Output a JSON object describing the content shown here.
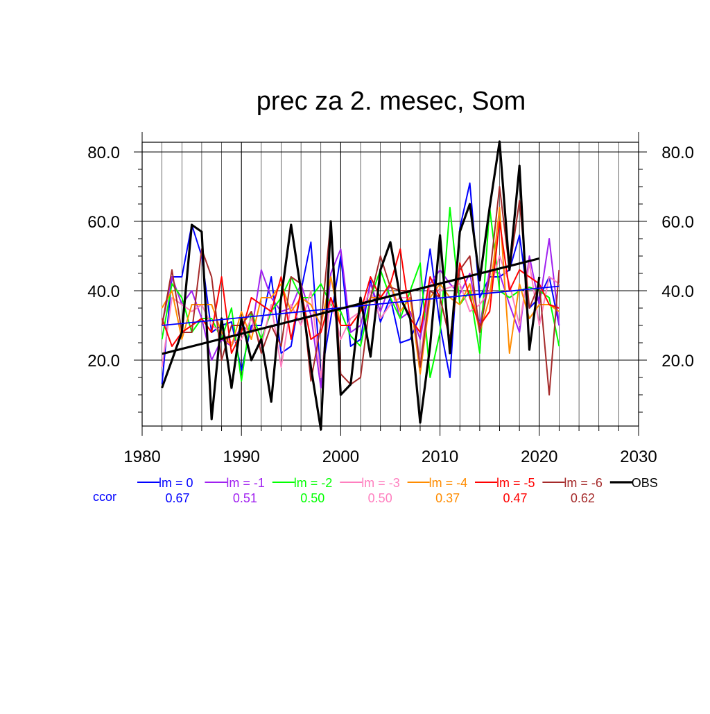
{
  "chart_data": {
    "type": "line",
    "title": "prec za 2. mesec, Som",
    "xlim": [
      1980,
      2030
    ],
    "ylim": [
      0,
      85
    ],
    "xticks": [
      1980,
      1990,
      2000,
      2010,
      2020,
      2030
    ],
    "xtick_labels": [
      "1980",
      "1990",
      "2000",
      "2010",
      "2020",
      "2030"
    ],
    "yticks": [
      20,
      40,
      60,
      80
    ],
    "ytick_labels": [
      "20.0",
      "40.0",
      "60.0",
      "80.0"
    ],
    "grid": true,
    "legend_position": "bottom",
    "ccor_label": "ccor",
    "x": [
      1982,
      1983,
      1984,
      1985,
      1986,
      1987,
      1988,
      1989,
      1990,
      1991,
      1992,
      1993,
      1994,
      1995,
      1996,
      1997,
      1998,
      1999,
      2000,
      2001,
      2002,
      2003,
      2004,
      2005,
      2006,
      2007,
      2008,
      2009,
      2010,
      2011,
      2012,
      2013,
      2014,
      2015,
      2016,
      2017,
      2018,
      2019,
      2020,
      2021,
      2022
    ],
    "series": [
      {
        "name": "lm = 0",
        "color": "#0000ff",
        "ccor": "0.67",
        "values": [
          13,
          44,
          44,
          59,
          50,
          28,
          30,
          31,
          17,
          30,
          30,
          44,
          22,
          24,
          40,
          54,
          15,
          32,
          50,
          24,
          26,
          43,
          31,
          38,
          25,
          26,
          33,
          52,
          30,
          15,
          58,
          71,
          38,
          44,
          44,
          46,
          56,
          35,
          38,
          44,
          30
        ]
      },
      {
        "name": "lm = -1",
        "color": "#a020f0",
        "ccor": "0.51",
        "values": [
          30,
          44,
          36,
          40,
          32,
          20,
          26,
          24,
          30,
          28,
          46,
          38,
          34,
          35,
          42,
          33,
          12,
          45,
          52,
          28,
          30,
          42,
          34,
          42,
          32,
          34,
          26,
          42,
          46,
          42,
          39,
          45,
          30,
          46,
          45,
          36,
          28,
          50,
          36,
          55,
          30
        ]
      },
      {
        "name": "lm = -2",
        "color": "#00ff00",
        "ccor": "0.50",
        "values": [
          26,
          42,
          38,
          28,
          32,
          32,
          26,
          35,
          14,
          34,
          26,
          34,
          38,
          44,
          38,
          38,
          42,
          36,
          34,
          27,
          24,
          38,
          46,
          38,
          32,
          40,
          48,
          15,
          28,
          64,
          36,
          40,
          22,
          64,
          40,
          38,
          40,
          41,
          40,
          38,
          24
        ]
      },
      {
        "name": "lm = -3",
        "color": "#ff7fbf",
        "ccor": "0.50",
        "values": [
          18,
          38,
          36,
          34,
          36,
          30,
          28,
          25,
          26,
          32,
          24,
          36,
          18,
          36,
          30,
          40,
          15,
          38,
          26,
          32,
          34,
          40,
          32,
          36,
          38,
          38,
          20,
          42,
          40,
          41,
          42,
          34,
          36,
          40,
          50,
          42,
          30,
          48,
          30,
          44,
          42
        ]
      },
      {
        "name": "lm = -4",
        "color": "#ff8c00",
        "ccor": "0.37",
        "values": [
          35,
          40,
          26,
          36,
          36,
          36,
          28,
          24,
          34,
          26,
          38,
          38,
          42,
          34,
          38,
          36,
          30,
          44,
          30,
          30,
          34,
          38,
          38,
          42,
          34,
          38,
          16,
          38,
          42,
          38,
          36,
          42,
          28,
          38,
          64,
          22,
          42,
          32,
          36,
          36,
          34
        ]
      },
      {
        "name": "lm = -5",
        "color": "#ff0000",
        "ccor": "0.47",
        "values": [
          32,
          24,
          28,
          30,
          32,
          28,
          44,
          22,
          28,
          38,
          36,
          34,
          44,
          26,
          40,
          26,
          28,
          38,
          30,
          30,
          34,
          44,
          38,
          42,
          52,
          32,
          28,
          44,
          38,
          26,
          48,
          38,
          30,
          34,
          60,
          40,
          46,
          44,
          42,
          36,
          35
        ]
      },
      {
        "name": "lm = -6",
        "color": "#a52a2a",
        "ccor": "0.62",
        "values": [
          30,
          46,
          28,
          28,
          52,
          44,
          20,
          30,
          30,
          34,
          22,
          30,
          24,
          44,
          42,
          14,
          30,
          60,
          16,
          13,
          15,
          38,
          50,
          41,
          40,
          40,
          18,
          40,
          38,
          26,
          46,
          50,
          28,
          44,
          70,
          46,
          66,
          35,
          42,
          10,
          46
        ]
      },
      {
        "name": "OBS",
        "color": "#000000",
        "ccor": "",
        "values": [
          12,
          20,
          28,
          59,
          57,
          3,
          32,
          12,
          32,
          20,
          26,
          8,
          38,
          59,
          40,
          18,
          0,
          60,
          10,
          13,
          38,
          21,
          46,
          54,
          38,
          32,
          2,
          24,
          56,
          22,
          57,
          65,
          43,
          64,
          83,
          46,
          76,
          23,
          44,
          null,
          null
        ]
      }
    ],
    "trend_lines": [
      {
        "name": "lm = 0 trend",
        "color": "#0000ff",
        "x": [
          1982,
          2022
        ],
        "y": [
          30.0,
          41.3
        ]
      },
      {
        "name": "OBS trend",
        "color": "#000000",
        "x": [
          1982,
          2020
        ],
        "y": [
          21.8,
          49.3
        ]
      }
    ]
  }
}
